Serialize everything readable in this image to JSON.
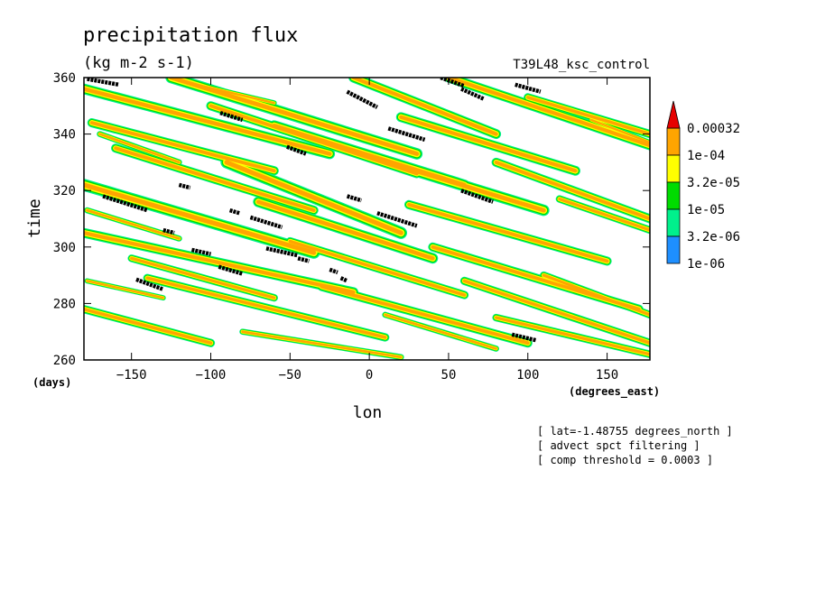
{
  "chart_data": {
    "type": "heatmap",
    "title": "precipitation flux",
    "subtitle": "(kg m-2 s-1)",
    "run_label": "T39L48_ksc_control",
    "xlabel": "lon",
    "ylabel": "time",
    "x_unit": "(degrees_east)",
    "y_unit": "(days)",
    "xlim": [
      -180,
      177
    ],
    "ylim": [
      260,
      360
    ],
    "x_ticks": [
      -150,
      -100,
      -50,
      0,
      50,
      100,
      150
    ],
    "y_ticks": [
      260,
      280,
      300,
      320,
      340,
      360
    ],
    "legend_placement": "right",
    "levels": [
      {
        "label": "1e-06",
        "color": "#1e8fff"
      },
      {
        "label": "3.2e-06",
        "color": "#00f08c"
      },
      {
        "label": "1e-05",
        "color": "#00dc00"
      },
      {
        "label": "3.2e-05",
        "color": "#ffff00"
      },
      {
        "label": "1e-04",
        "color": "#ffa500"
      },
      {
        "label": "0.00032",
        "color": "#e60000"
      }
    ],
    "threshold_marker_color": "#000000",
    "notes": [
      "[ lat=-1.48755 degrees_north ]",
      "[ advect spct filtering ]",
      "[ comp threshold = 0.0003 ]"
    ],
    "streaks": [
      {
        "lon0": -180,
        "t0": 322,
        "lon1": -35,
        "t1": 298,
        "w": 3.2
      },
      {
        "lon0": -180,
        "t0": 305,
        "lon1": -10,
        "t1": 284,
        "w": 2.6
      },
      {
        "lon0": -180,
        "t0": 278,
        "lon1": -100,
        "t1": 266,
        "w": 2.2
      },
      {
        "lon0": -180,
        "t0": 356,
        "lon1": -25,
        "t1": 333,
        "w": 2.8
      },
      {
        "lon0": -175,
        "t0": 344,
        "lon1": -60,
        "t1": 327,
        "w": 2.4
      },
      {
        "lon0": -160,
        "t0": 335,
        "lon1": -35,
        "t1": 313,
        "w": 2.4
      },
      {
        "lon0": -150,
        "t0": 296,
        "lon1": -60,
        "t1": 282,
        "w": 2.0
      },
      {
        "lon0": -140,
        "t0": 289,
        "lon1": 10,
        "t1": 268,
        "w": 2.2
      },
      {
        "lon0": -125,
        "t0": 360,
        "lon1": 30,
        "t1": 333,
        "w": 3.0
      },
      {
        "lon0": -100,
        "t0": 350,
        "lon1": 30,
        "t1": 326,
        "w": 2.4
      },
      {
        "lon0": -90,
        "t0": 330,
        "lon1": 20,
        "t1": 305,
        "w": 3.2
      },
      {
        "lon0": -70,
        "t0": 316,
        "lon1": 40,
        "t1": 296,
        "w": 2.8
      },
      {
        "lon0": -50,
        "t0": 302,
        "lon1": 60,
        "t1": 283,
        "w": 2.2
      },
      {
        "lon0": -30,
        "t0": 286,
        "lon1": 100,
        "t1": 266,
        "w": 2.4
      },
      {
        "lon0": -60,
        "t0": 343,
        "lon1": 60,
        "t1": 322,
        "w": 2.8
      },
      {
        "lon0": -10,
        "t0": 360,
        "lon1": 80,
        "t1": 340,
        "w": 2.6
      },
      {
        "lon0": 0,
        "t0": 332,
        "lon1": 110,
        "t1": 313,
        "w": 3.0
      },
      {
        "lon0": 20,
        "t0": 346,
        "lon1": 130,
        "t1": 327,
        "w": 2.6
      },
      {
        "lon0": 25,
        "t0": 315,
        "lon1": 150,
        "t1": 295,
        "w": 2.4
      },
      {
        "lon0": 40,
        "t0": 300,
        "lon1": 170,
        "t1": 278,
        "w": 2.4
      },
      {
        "lon0": 60,
        "t0": 288,
        "lon1": 177,
        "t1": 266,
        "w": 2.2
      },
      {
        "lon0": 50,
        "t0": 360,
        "lon1": 177,
        "t1": 336,
        "w": 2.6
      },
      {
        "lon0": 80,
        "t0": 330,
        "lon1": 177,
        "t1": 310,
        "w": 2.4
      },
      {
        "lon0": 100,
        "t0": 353,
        "lon1": 177,
        "t1": 340,
        "w": 2.2
      },
      {
        "lon0": 120,
        "t0": 317,
        "lon1": 177,
        "t1": 306,
        "w": 2.0
      },
      {
        "lon0": 110,
        "t0": 290,
        "lon1": 177,
        "t1": 276,
        "w": 2.0
      },
      {
        "lon0": 80,
        "t0": 275,
        "lon1": 177,
        "t1": 262,
        "w": 2.0
      },
      {
        "lon0": -170,
        "t0": 340,
        "lon1": -120,
        "t1": 330,
        "w": 1.6
      },
      {
        "lon0": -178,
        "t0": 313,
        "lon1": -120,
        "t1": 303,
        "w": 1.6
      },
      {
        "lon0": -178,
        "t0": 288,
        "lon1": -130,
        "t1": 282,
        "w": 1.4
      },
      {
        "lon0": -80,
        "t0": 270,
        "lon1": 20,
        "t1": 261,
        "w": 1.6
      },
      {
        "lon0": 10,
        "t0": 276,
        "lon1": 80,
        "t1": 264,
        "w": 1.6
      },
      {
        "lon0": 140,
        "t0": 345,
        "lon1": 177,
        "t1": 337,
        "w": 1.4
      },
      {
        "lon0": -120,
        "t0": 359,
        "lon1": -60,
        "t1": 351,
        "w": 1.4
      }
    ],
    "threshold_segments": [
      {
        "lon0": -178,
        "t0": 359.5,
        "lon1": -158,
        "t1": 357.5
      },
      {
        "lon0": -168,
        "t0": 318,
        "lon1": -140,
        "t1": 313
      },
      {
        "lon0": -147,
        "t0": 288.5,
        "lon1": -130,
        "t1": 285
      },
      {
        "lon0": -130,
        "t0": 306,
        "lon1": -123,
        "t1": 305
      },
      {
        "lon0": -120,
        "t0": 322,
        "lon1": -113,
        "t1": 321
      },
      {
        "lon0": -112,
        "t0": 299,
        "lon1": -100,
        "t1": 297.5
      },
      {
        "lon0": -94,
        "t0": 347.5,
        "lon1": -80,
        "t1": 345
      },
      {
        "lon0": -95,
        "t0": 293,
        "lon1": -80,
        "t1": 290.5
      },
      {
        "lon0": -88,
        "t0": 313,
        "lon1": -82,
        "t1": 312
      },
      {
        "lon0": -75,
        "t0": 310.5,
        "lon1": -55,
        "t1": 307
      },
      {
        "lon0": -65,
        "t0": 299.5,
        "lon1": -45,
        "t1": 297
      },
      {
        "lon0": -52,
        "t0": 335.5,
        "lon1": -40,
        "t1": 333
      },
      {
        "lon0": -45,
        "t0": 296,
        "lon1": -38,
        "t1": 295
      },
      {
        "lon0": -25,
        "t0": 292,
        "lon1": -20,
        "t1": 291
      },
      {
        "lon0": -18,
        "t0": 289,
        "lon1": -14,
        "t1": 288
      },
      {
        "lon0": -14,
        "t0": 355,
        "lon1": 5,
        "t1": 349.5
      },
      {
        "lon0": -14,
        "t0": 318,
        "lon1": -5,
        "t1": 316.5
      },
      {
        "lon0": 5,
        "t0": 312,
        "lon1": 30,
        "t1": 307.5
      },
      {
        "lon0": 12,
        "t0": 342,
        "lon1": 35,
        "t1": 338
      },
      {
        "lon0": 45,
        "t0": 360,
        "lon1": 60,
        "t1": 357
      },
      {
        "lon0": 58,
        "t0": 356,
        "lon1": 72,
        "t1": 352.5
      },
      {
        "lon0": 58,
        "t0": 320,
        "lon1": 78,
        "t1": 316
      },
      {
        "lon0": 92,
        "t0": 357.5,
        "lon1": 108,
        "t1": 355
      },
      {
        "lon0": 90,
        "t0": 269,
        "lon1": 105,
        "t1": 267
      }
    ]
  }
}
